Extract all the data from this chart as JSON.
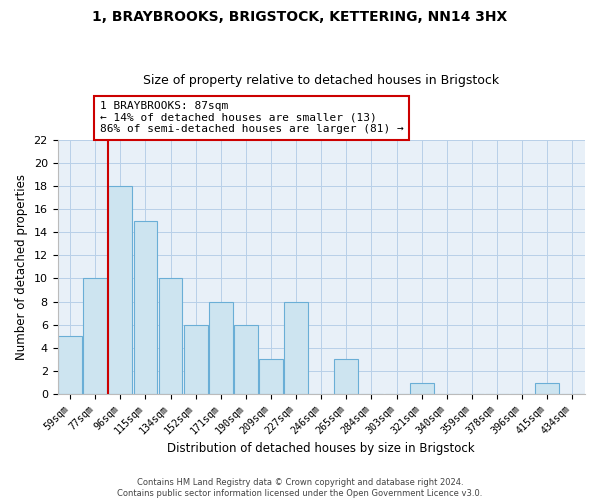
{
  "title": "1, BRAYBROOKS, BRIGSTOCK, KETTERING, NN14 3HX",
  "subtitle": "Size of property relative to detached houses in Brigstock",
  "xlabel": "Distribution of detached houses by size in Brigstock",
  "ylabel": "Number of detached properties",
  "bar_labels": [
    "59sqm",
    "77sqm",
    "96sqm",
    "115sqm",
    "134sqm",
    "152sqm",
    "171sqm",
    "190sqm",
    "209sqm",
    "227sqm",
    "246sqm",
    "265sqm",
    "284sqm",
    "303sqm",
    "321sqm",
    "340sqm",
    "359sqm",
    "378sqm",
    "396sqm",
    "415sqm",
    "434sqm"
  ],
  "bar_values": [
    5,
    10,
    18,
    15,
    10,
    6,
    8,
    6,
    3,
    8,
    0,
    3,
    0,
    0,
    1,
    0,
    0,
    0,
    0,
    1,
    0
  ],
  "bar_color": "#cde4f0",
  "bar_edge_color": "#6aaed6",
  "background_color": "#ffffff",
  "plot_bg_color": "#e8f0f8",
  "grid_color": "#b8cfe8",
  "marker_line_color": "#cc0000",
  "annotation_box_color": "#ffffff",
  "annotation_box_edge": "#cc0000",
  "marker_label": "1 BRAYBROOKS: 87sqm",
  "annotation_line1": "← 14% of detached houses are smaller (13)",
  "annotation_line2": "86% of semi-detached houses are larger (81) →",
  "ylim": [
    0,
    22
  ],
  "yticks": [
    0,
    2,
    4,
    6,
    8,
    10,
    12,
    14,
    16,
    18,
    20,
    22
  ],
  "footer_line1": "Contains HM Land Registry data © Crown copyright and database right 2024.",
  "footer_line2": "Contains public sector information licensed under the Open Government Licence v3.0."
}
